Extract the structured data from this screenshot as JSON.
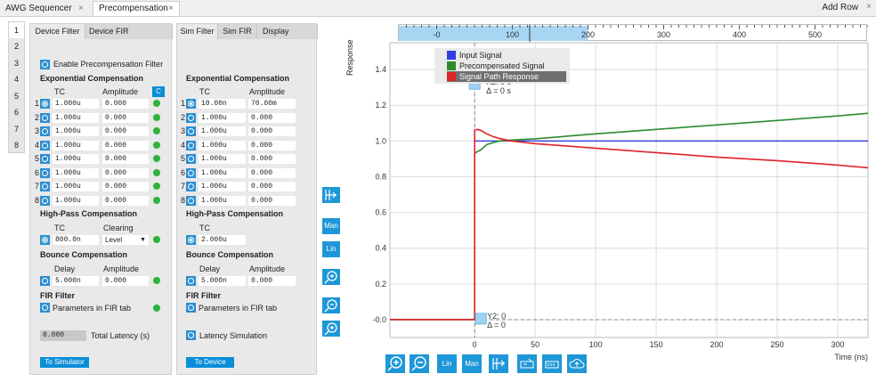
{
  "tabs": {
    "items": [
      {
        "label": "AWG Sequencer"
      },
      {
        "label": "Precompensation"
      }
    ],
    "close_glyph": "×",
    "add_row": "Add Row"
  },
  "side_numbers": [
    "1",
    "2",
    "3",
    "4",
    "5",
    "6",
    "7",
    "8"
  ],
  "left_panel": {
    "tabs": [
      "Device Filter",
      "Device FIR"
    ],
    "enable_label": "Enable Precompensation Filter",
    "exp_title": "Exponential Compensation",
    "col_tc": "TC",
    "col_amp": "Amplitude",
    "c_button": "C",
    "rows": [
      {
        "n": "1",
        "tc": "1.000u",
        "amp": "0.000"
      },
      {
        "n": "2",
        "tc": "1.000u",
        "amp": "0.000"
      },
      {
        "n": "3",
        "tc": "1.000u",
        "amp": "0.000"
      },
      {
        "n": "4",
        "tc": "1.000u",
        "amp": "0.000"
      },
      {
        "n": "5",
        "tc": "1.000u",
        "amp": "0.000"
      },
      {
        "n": "6",
        "tc": "1.000u",
        "amp": "0.000"
      },
      {
        "n": "7",
        "tc": "1.000u",
        "amp": "0.000"
      },
      {
        "n": "8",
        "tc": "1.000u",
        "amp": "0.000"
      }
    ],
    "hp_title": "High-Pass Compensation",
    "hp_tc_label": "TC",
    "hp_clearing_label": "Clearing",
    "hp_tc": "800.0n",
    "hp_clearing": "Level",
    "bounce_title": "Bounce Compensation",
    "delay_label": "Delay",
    "amp_label": "Amplitude",
    "delay": "5.000n",
    "bounce_amp": "0.000",
    "fir_title": "FIR Filter",
    "fir_label": "Parameters in FIR tab",
    "latency_value": "0.000",
    "latency_label": "Total Latency (s)",
    "to_simulator": "To Simulator"
  },
  "mid_panel": {
    "tabs": [
      "Sim Filter",
      "Sim FIR",
      "Display"
    ],
    "exp_title": "Exponential Compensation",
    "col_tc": "TC",
    "col_amp": "Amplitude",
    "rows": [
      {
        "n": "1",
        "tc": "10.00n",
        "amp": "70.00m"
      },
      {
        "n": "2",
        "tc": "1.000u",
        "amp": "0.000"
      },
      {
        "n": "3",
        "tc": "1.000u",
        "amp": "0.000"
      },
      {
        "n": "4",
        "tc": "1.000u",
        "amp": "0.000"
      },
      {
        "n": "5",
        "tc": "1.000u",
        "amp": "0.000"
      },
      {
        "n": "6",
        "tc": "1.000u",
        "amp": "0.000"
      },
      {
        "n": "7",
        "tc": "1.000u",
        "amp": "0.000"
      },
      {
        "n": "8",
        "tc": "1.000u",
        "amp": "0.000"
      }
    ],
    "hp_title": "High-Pass Compensation",
    "hp_tc_label": "TC",
    "hp_tc": "2.000u",
    "bounce_title": "Bounce Compensation",
    "delay_label": "Delay",
    "amp_label": "Amplitude",
    "delay": "5.000n",
    "bounce_amp": "0.000",
    "fir_title": "FIR Filter",
    "fir_label": "Parameters in FIR tab",
    "latency_sim": "Latency Simulation",
    "to_device": "To Device"
  },
  "toolbar": {
    "vertical": [
      "fit-icon",
      "Man",
      "Lin",
      "zoom-fit-icon",
      "zoom-out-icon",
      "zoom-in-icon"
    ],
    "man_label": "Man",
    "lin_label": "Lin",
    "bottom": [
      "zoom-in-icon",
      "zoom-out-icon",
      "Lin",
      "Man",
      "fit-icon",
      "cursor-icon",
      "math-icon",
      "cloud-save-icon"
    ]
  },
  "chart_data": {
    "type": "line",
    "ylabel": "Response",
    "xlabel": "Time (ns)",
    "xlim": [
      -70,
      325
    ],
    "ylim": [
      -0.1,
      1.55
    ],
    "xticks": [
      0,
      50,
      100,
      150,
      200,
      250,
      300
    ],
    "yticks": [
      -0.0,
      0.2,
      0.4,
      0.6,
      0.8,
      1.0,
      1.2,
      1.4
    ],
    "ytick_labels": [
      "-0.0",
      "0.2",
      "0.4",
      "0.6",
      "0.8",
      "1.0",
      "1.2",
      "1.4"
    ],
    "overview_ticks": [
      0,
      100,
      200,
      300,
      400,
      500
    ],
    "overview_tick_labels": [
      "-0",
      "100",
      "200",
      "300",
      "400",
      "500"
    ],
    "overview_range": [
      -50,
      570
    ],
    "overview_window": [
      -50,
      200
    ],
    "legend": [
      "Input Signal",
      "Precompensated Signal",
      "Signal Path Response"
    ],
    "colors": {
      "input": "#2f3fe0",
      "precomp": "#2e8b2e",
      "response": "#e0222a"
    },
    "cursor_x": {
      "label": "X2: 0 s",
      "delta": "Δ = 0 s"
    },
    "cursor_y": {
      "label": "Y2: 0",
      "delta": "Δ = 0"
    },
    "series": [
      {
        "name": "Input Signal",
        "color": "#2f3fe0",
        "x": [
          -70,
          0,
          0,
          325
        ],
        "y": [
          0,
          0,
          1.0,
          1.0
        ]
      },
      {
        "name": "Precompensated Signal",
        "color": "#2e8b2e",
        "x": [
          -70,
          0,
          0,
          2,
          5,
          10,
          15,
          20,
          30,
          50,
          100,
          150,
          200,
          250,
          300,
          325
        ],
        "y": [
          0,
          0,
          0.93,
          0.94,
          0.95,
          0.98,
          0.99,
          1.0,
          1.005,
          1.012,
          1.04,
          1.065,
          1.09,
          1.115,
          1.14,
          1.155
        ]
      },
      {
        "name": "Signal Path Response",
        "color": "#e0222a",
        "x": [
          -70,
          0,
          0,
          2,
          5,
          10,
          15,
          20,
          30,
          50,
          100,
          150,
          200,
          250,
          300,
          325
        ],
        "y": [
          0,
          0,
          1.06,
          1.065,
          1.06,
          1.04,
          1.025,
          1.015,
          1.0,
          0.985,
          0.96,
          0.935,
          0.91,
          0.89,
          0.865,
          0.85
        ]
      }
    ]
  }
}
